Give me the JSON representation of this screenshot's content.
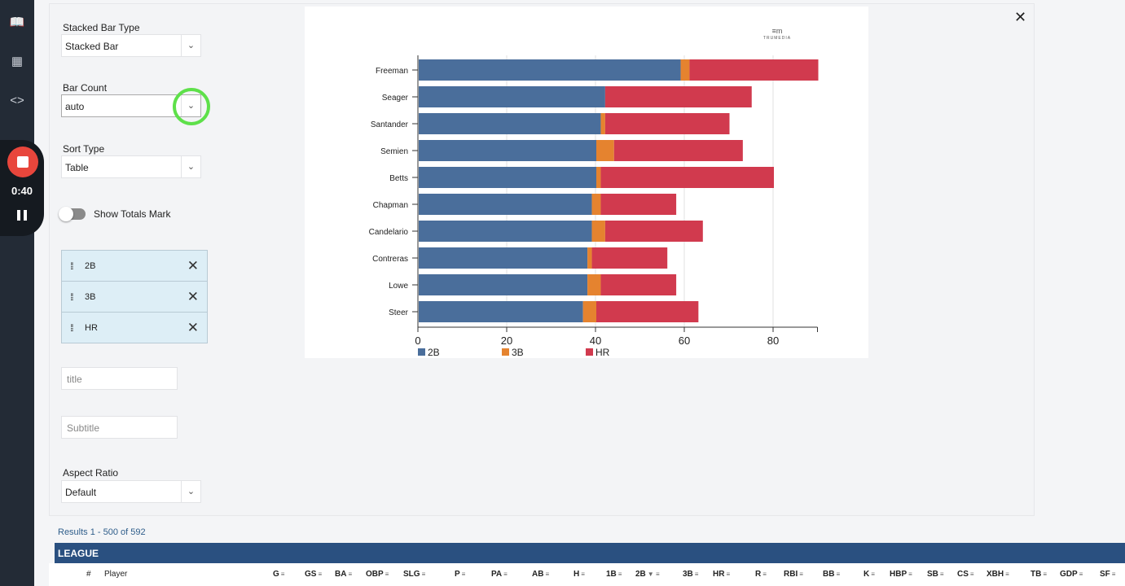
{
  "recorder": {
    "time": "0:40"
  },
  "controls": {
    "stacked_bar_type": {
      "label": "Stacked Bar Type",
      "value": "Stacked Bar"
    },
    "bar_count": {
      "label": "Bar Count",
      "value": "auto"
    },
    "sort_type": {
      "label": "Sort Type",
      "value": "Table"
    },
    "show_totals": {
      "label": "Show Totals Mark",
      "on": false
    },
    "series_chips": [
      "2B",
      "3B",
      "HR"
    ],
    "title_placeholder": "title",
    "subtitle_placeholder": "Subtitle",
    "aspect_ratio": {
      "label": "Aspect Ratio",
      "value": "Default"
    }
  },
  "chart_data": {
    "type": "bar",
    "orientation": "horizontal",
    "stacked": true,
    "categories": [
      "Freeman",
      "Seager",
      "Santander",
      "Semien",
      "Betts",
      "Chapman",
      "Candelario",
      "Contreras",
      "Lowe",
      "Steer"
    ],
    "series": [
      {
        "name": "2B",
        "color": "#4a6e9b",
        "values": [
          59,
          42,
          41,
          40,
          40,
          39,
          39,
          38,
          38,
          37
        ]
      },
      {
        "name": "3B",
        "color": "#e5832f",
        "values": [
          2,
          0,
          1,
          4,
          1,
          2,
          3,
          1,
          3,
          3
        ]
      },
      {
        "name": "HR",
        "color": "#d13a4e",
        "values": [
          29,
          33,
          28,
          29,
          39,
          17,
          22,
          17,
          17,
          23
        ]
      }
    ],
    "xticks": [
      "0",
      "20",
      "40",
      "60",
      "80"
    ],
    "xlim": [
      0,
      90
    ],
    "grid": true,
    "legend": "bottom-left",
    "logo_text": "TRUMEDIA"
  },
  "table": {
    "results": "Results 1 - 500 of 592",
    "section": "LEAGUE",
    "columns": [
      "#",
      "Player",
      "G",
      "GS",
      "BA",
      "OBP",
      "SLG",
      "P",
      "PA",
      "AB",
      "H",
      "1B",
      "2B",
      "3B",
      "HR",
      "R",
      "RBI",
      "BB",
      "K",
      "HBP",
      "SB",
      "CS",
      "XBH",
      "TB",
      "GDP",
      "SF"
    ],
    "sorted_column": "2B"
  }
}
